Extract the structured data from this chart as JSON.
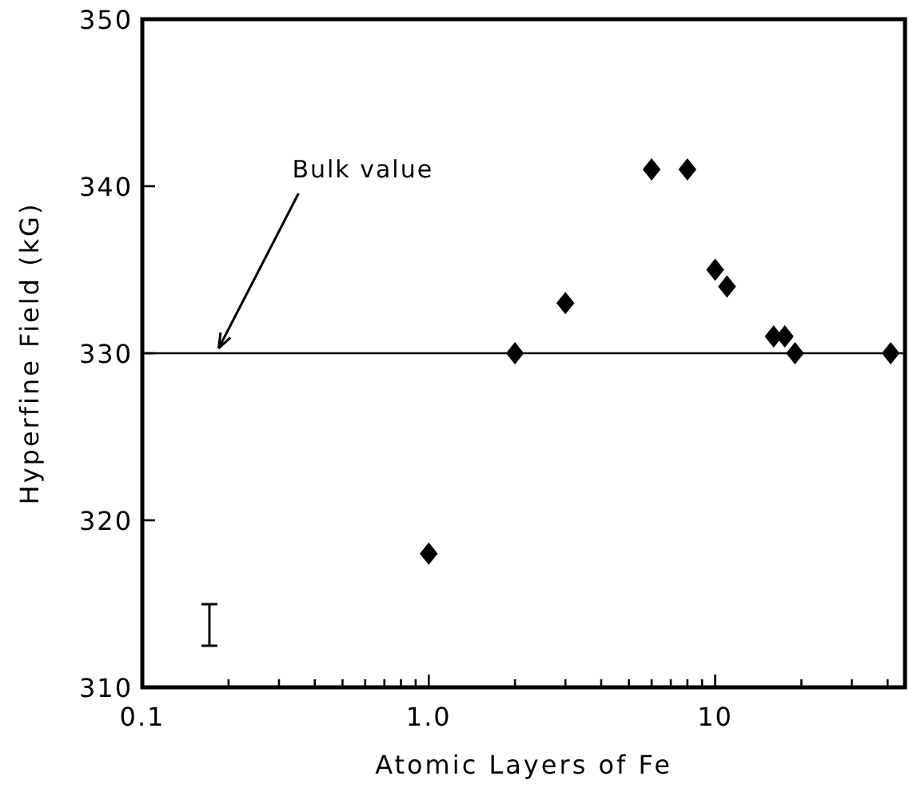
{
  "chart_data": {
    "type": "scatter",
    "xlabel": "Atomic Layers of Fe",
    "ylabel": "Hyperfine Field (kG)",
    "log": "x",
    "marker": "diamond",
    "xlim": [
      0.1,
      46
    ],
    "ylim": [
      310,
      350
    ],
    "xticks": [
      0.1,
      {
        "value": 0.2,
        "label": null
      },
      {
        "value": 0.3,
        "label": null
      },
      {
        "value": 0.4,
        "label": null
      },
      {
        "value": 0.5,
        "label": null
      },
      {
        "value": 0.6,
        "label": null
      },
      {
        "value": 0.7,
        "label": null
      },
      {
        "value": 0.8,
        "label": null
      },
      {
        "value": 0.9,
        "label": null
      },
      {
        "value": 1,
        "label": "1.0"
      },
      {
        "value": 2,
        "label": null
      },
      {
        "value": 3,
        "label": null
      },
      {
        "value": 4,
        "label": null
      },
      {
        "value": 5,
        "label": null
      },
      {
        "value": 6,
        "label": null
      },
      {
        "value": 7,
        "label": null
      },
      {
        "value": 8,
        "label": null
      },
      {
        "value": 9,
        "label": null
      },
      10,
      {
        "value": 20,
        "label": null
      },
      {
        "value": 30,
        "label": null
      },
      {
        "value": 40,
        "label": null
      }
    ],
    "yticks": [
      310,
      320,
      330,
      340,
      350
    ],
    "x": [
      1,
      2,
      3,
      6,
      8,
      10,
      11,
      16,
      17.5,
      19,
      41
    ],
    "values": [
      318,
      330,
      333,
      341,
      341,
      335,
      334,
      331,
      331,
      330,
      330
    ],
    "color": "#000000",
    "ref_lines": [
      {
        "axis": "y",
        "value": 330,
        "label": "Bulk value",
        "color": "#000000"
      }
    ]
  }
}
